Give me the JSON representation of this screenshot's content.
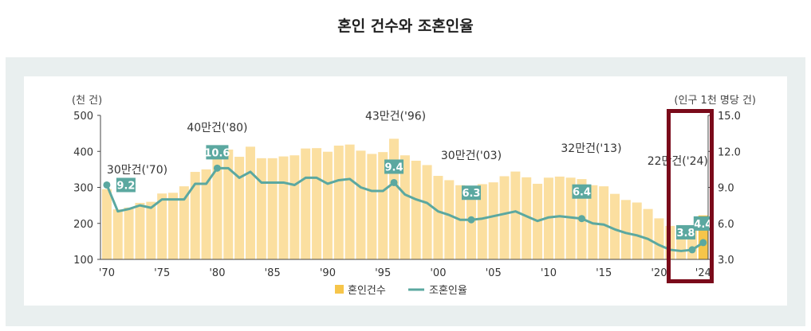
{
  "chart_data": {
    "type": "bar+line",
    "title": "혼인 건수와 조혼인율",
    "left_unit": "(천 건)",
    "right_unit": "(인구 1천 명당 건)",
    "left_ylim": [
      100,
      500
    ],
    "left_ticks": [
      "100",
      "200",
      "300",
      "400",
      "500"
    ],
    "right_ylim": [
      3.0,
      15.0
    ],
    "right_ticks": [
      "3.0",
      "6.0",
      "9.0",
      "12.0",
      "15.0"
    ],
    "x_tick_labels": [
      {
        "year": 1970,
        "label": "'70"
      },
      {
        "year": 1975,
        "label": "'75"
      },
      {
        "year": 1980,
        "label": "'80"
      },
      {
        "year": 1985,
        "label": "'85"
      },
      {
        "year": 1990,
        "label": "'90"
      },
      {
        "year": 1995,
        "label": "'95"
      },
      {
        "year": 2000,
        "label": "'00"
      },
      {
        "year": 2005,
        "label": "'05"
      },
      {
        "year": 2010,
        "label": "'10"
      },
      {
        "year": 2015,
        "label": "'15"
      },
      {
        "year": 2020,
        "label": "'20"
      },
      {
        "year": 2024,
        "label": "'24"
      }
    ],
    "years": [
      1970,
      1971,
      1972,
      1973,
      1974,
      1975,
      1976,
      1977,
      1978,
      1979,
      1980,
      1981,
      1982,
      1983,
      1984,
      1985,
      1986,
      1987,
      1988,
      1989,
      1990,
      1991,
      1992,
      1993,
      1994,
      1995,
      1996,
      1997,
      1998,
      1999,
      2000,
      2001,
      2002,
      2003,
      2004,
      2005,
      2006,
      2007,
      2008,
      2009,
      2010,
      2011,
      2012,
      2013,
      2014,
      2015,
      2016,
      2017,
      2018,
      2019,
      2020,
      2021,
      2022,
      2023,
      2024
    ],
    "series": [
      {
        "name": "혼인건수",
        "type": "bar",
        "color": "#fbdfa0",
        "highlight_color": "#f6c54a",
        "values": [
          295,
          239,
          244,
          257,
          260,
          283,
          285,
          303,
          343,
          350,
          403,
          405,
          385,
          413,
          381,
          381,
          386,
          389,
          408,
          409,
          399,
          416,
          419,
          402,
          393,
          398,
          435,
          389,
          374,
          362,
          332,
          320,
          306,
          303,
          309,
          314,
          331,
          344,
          328,
          310,
          327,
          330,
          327,
          323,
          306,
          303,
          282,
          265,
          258,
          240,
          214,
          193,
          192,
          194,
          222
        ]
      },
      {
        "name": "조혼인율",
        "type": "line",
        "color": "#5ba8a0",
        "values": [
          9.2,
          7.0,
          7.2,
          7.5,
          7.3,
          8.0,
          8.0,
          8.0,
          9.3,
          9.3,
          10.6,
          10.6,
          9.8,
          10.3,
          9.4,
          9.4,
          9.4,
          9.2,
          9.8,
          9.8,
          9.3,
          9.6,
          9.7,
          9.0,
          8.7,
          8.7,
          9.4,
          8.4,
          8.0,
          7.7,
          7.0,
          6.7,
          6.3,
          6.3,
          6.4,
          6.6,
          6.8,
          7.0,
          6.6,
          6.2,
          6.5,
          6.6,
          6.5,
          6.4,
          6.0,
          5.9,
          5.5,
          5.2,
          5.0,
          4.7,
          4.2,
          3.8,
          3.7,
          3.8,
          4.4
        ]
      }
    ],
    "count_annotations": [
      {
        "year": 1970,
        "text": "30만건('70)"
      },
      {
        "year": 1980,
        "text": "40만건('80)"
      },
      {
        "year": 1996,
        "text": "43만건('96)"
      },
      {
        "year": 2003,
        "text": "30만건('03)"
      },
      {
        "year": 2013,
        "text": "32만건('13)"
      },
      {
        "year": 2024,
        "text": "22만건('24)"
      }
    ],
    "rate_annotations": [
      {
        "year": 1970,
        "text": "9.2"
      },
      {
        "year": 1980,
        "text": "10.6"
      },
      {
        "year": 1996,
        "text": "9.4"
      },
      {
        "year": 2003,
        "text": "6.3"
      },
      {
        "year": 2013,
        "text": "6.4"
      },
      {
        "year": 2023,
        "text": "3.8"
      },
      {
        "year": 2024,
        "text": "4.4"
      }
    ],
    "highlight_box_color": "#7a0a1a",
    "legend": [
      {
        "label": "혼인건수",
        "swatch": "#f6c54a"
      },
      {
        "label": "조혼인율",
        "swatch": "#5ba8a0"
      }
    ]
  }
}
